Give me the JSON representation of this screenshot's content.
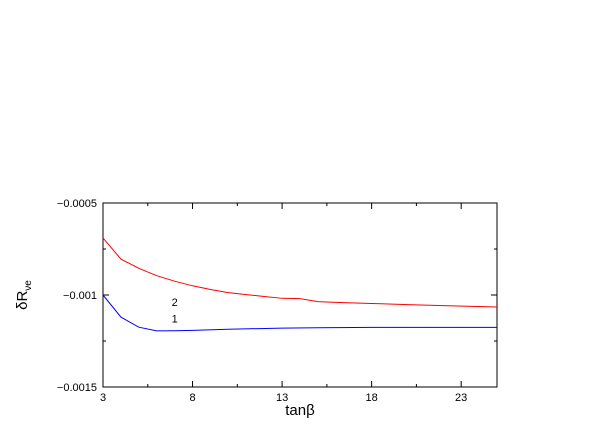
{
  "chart_data": {
    "type": "line",
    "title": "",
    "xlabel": "tanβ",
    "ylabel": "δR",
    "ylabel_subscript": "νe",
    "xlim": [
      3,
      25
    ],
    "ylim": [
      -0.0015,
      -0.0005
    ],
    "xticks": [
      3,
      8,
      13,
      18,
      23
    ],
    "xtick_labels": [
      "3",
      "8",
      "13",
      "18",
      "23"
    ],
    "yticks": [
      -0.0015,
      -0.001,
      -0.0005
    ],
    "ytick_labels": [
      "−0.0015",
      "−0.001",
      "−0.0005"
    ],
    "grid": false,
    "series": [
      {
        "label": "1",
        "color": "#0000ff",
        "label_at": [
          7,
          -0.00115
        ],
        "x": [
          3,
          4,
          5,
          6,
          7,
          8,
          10,
          13,
          15,
          18,
          20,
          23,
          25
        ],
        "y": [
          -0.001,
          -0.00112,
          -0.001175,
          -0.001195,
          -0.001194,
          -0.001192,
          -0.001186,
          -0.00118,
          -0.001178,
          -0.001176,
          -0.001176,
          -0.001176,
          -0.001176
        ]
      },
      {
        "label": "2",
        "color": "#ff0000",
        "label_at": [
          7,
          -0.00106
        ],
        "x": [
          3,
          4,
          5,
          6,
          7,
          8,
          9,
          10,
          11,
          12,
          13,
          14,
          15,
          16,
          18,
          20,
          22,
          25
        ],
        "y": [
          -0.00069,
          -0.000805,
          -0.000855,
          -0.000895,
          -0.000925,
          -0.00095,
          -0.00097,
          -0.000987,
          -0.000998,
          -0.001008,
          -0.001018,
          -0.00102,
          -0.001036,
          -0.00104,
          -0.001046,
          -0.001052,
          -0.001058,
          -0.001065
        ]
      }
    ]
  }
}
